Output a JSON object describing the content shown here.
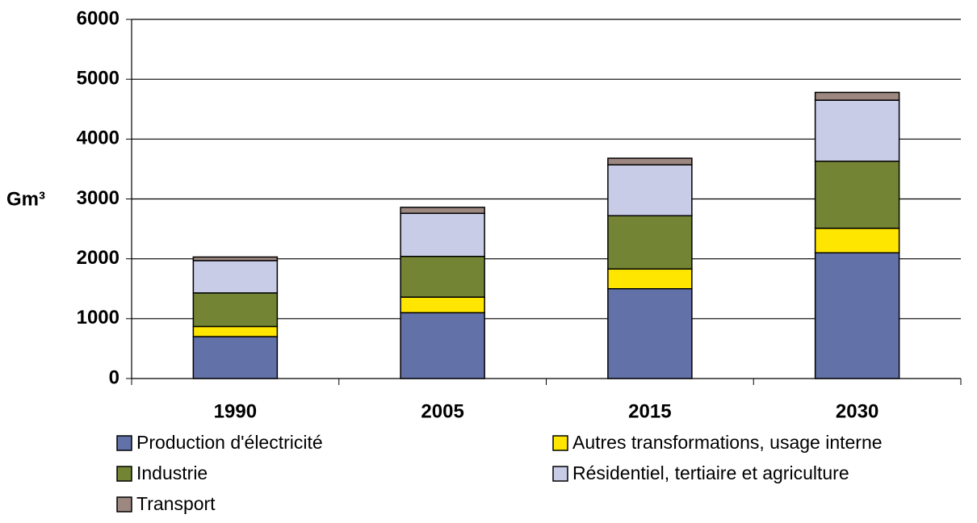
{
  "chart_data": {
    "type": "stacked_bar",
    "y_label": "Gm³",
    "categories": [
      "1990",
      "2005",
      "2015",
      "2030"
    ],
    "series": [
      {
        "name": "Production d'électricité",
        "color": "#6272a8",
        "values": [
          700,
          1100,
          1500,
          2100
        ]
      },
      {
        "name": "Autres transformations, usage interne",
        "color": "#ffe600",
        "values": [
          170,
          260,
          330,
          410
        ]
      },
      {
        "name": "Industrie",
        "color": "#738535",
        "values": [
          560,
          680,
          890,
          1120
        ]
      },
      {
        "name": "Résidentiel, tertiaire et agriculture",
        "color": "#c8cce6",
        "values": [
          540,
          720,
          850,
          1020
        ]
      },
      {
        "name": "Transport",
        "color": "#9c8880",
        "values": [
          60,
          100,
          110,
          130
        ]
      }
    ],
    "ylim": [
      0,
      6000
    ],
    "yticks": [
      0,
      1000,
      2000,
      3000,
      4000,
      5000,
      6000
    ],
    "grid": true
  }
}
